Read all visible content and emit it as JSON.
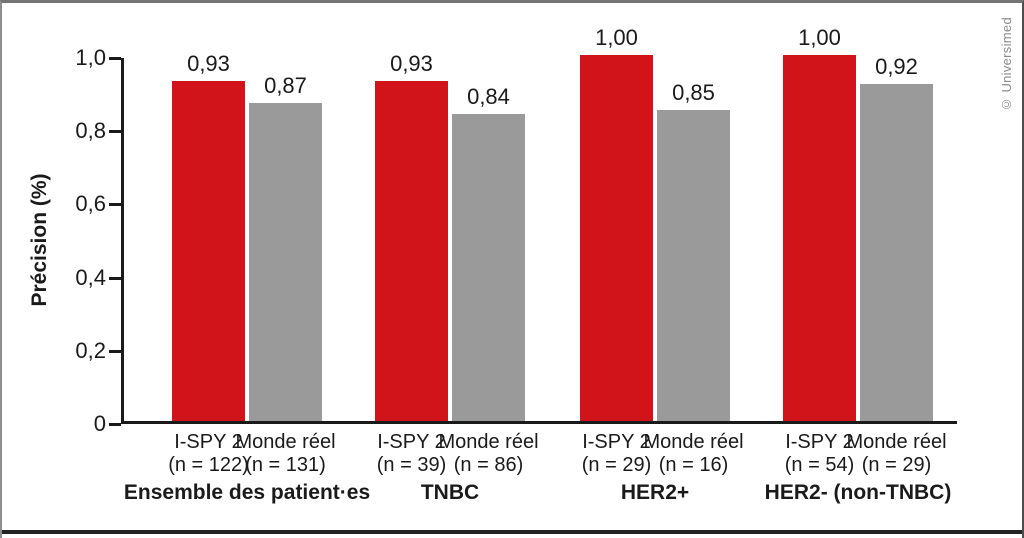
{
  "credit": "© Universimed",
  "colors": {
    "ispy2": "#d11419",
    "monde_reel": "#9a9a9a",
    "axis": "#1a1a1a",
    "credit_text": "#8c8c8c"
  },
  "chart_data": {
    "type": "bar",
    "title": "",
    "xlabel": "",
    "ylabel": "Précision (%)",
    "ylim": [
      0,
      1.0
    ],
    "grid": false,
    "legend_position": "none",
    "decimal_style": "comma",
    "yticks": [
      {
        "value": 1.0,
        "label": "1,0"
      },
      {
        "value": 0.8,
        "label": "0,8"
      },
      {
        "value": 0.6,
        "label": "0,6"
      },
      {
        "value": 0.4,
        "label": "0,4"
      },
      {
        "value": 0.2,
        "label": "0,2"
      },
      {
        "value": 0.0,
        "label": "0"
      }
    ],
    "groups": [
      {
        "label": "Ensemble des patient·es",
        "bars": [
          {
            "series": "I-SPY 2",
            "n_label": "(n = 122)",
            "value": 0.93,
            "value_label": "0,93",
            "color_key": "ispy2"
          },
          {
            "series": "Monde réel",
            "n_label": "(n = 131)",
            "value": 0.87,
            "value_label": "0,87",
            "color_key": "monde_reel"
          }
        ]
      },
      {
        "label": "TNBC",
        "bars": [
          {
            "series": "I-SPY 2",
            "n_label": "(n = 39)",
            "value": 0.93,
            "value_label": "0,93",
            "color_key": "ispy2"
          },
          {
            "series": "Monde réel",
            "n_label": "(n = 86)",
            "value": 0.84,
            "value_label": "0,84",
            "color_key": "monde_reel"
          }
        ]
      },
      {
        "label": "HER2+",
        "bars": [
          {
            "series": "I-SPY 2",
            "n_label": "(n = 29)",
            "value": 1.0,
            "value_label": "1,00",
            "color_key": "ispy2"
          },
          {
            "series": "Monde réel",
            "n_label": "(n = 16)",
            "value": 0.85,
            "value_label": "0,85",
            "color_key": "monde_reel"
          }
        ]
      },
      {
        "label": "HER2- (non-TNBC)",
        "bars": [
          {
            "series": "I-SPY 2",
            "n_label": "(n = 54)",
            "value": 1.0,
            "value_label": "1,00",
            "color_key": "ispy2"
          },
          {
            "series": "Monde réel",
            "n_label": "(n = 29)",
            "value": 0.92,
            "value_label": "0,92",
            "color_key": "monde_reel"
          }
        ]
      }
    ]
  }
}
